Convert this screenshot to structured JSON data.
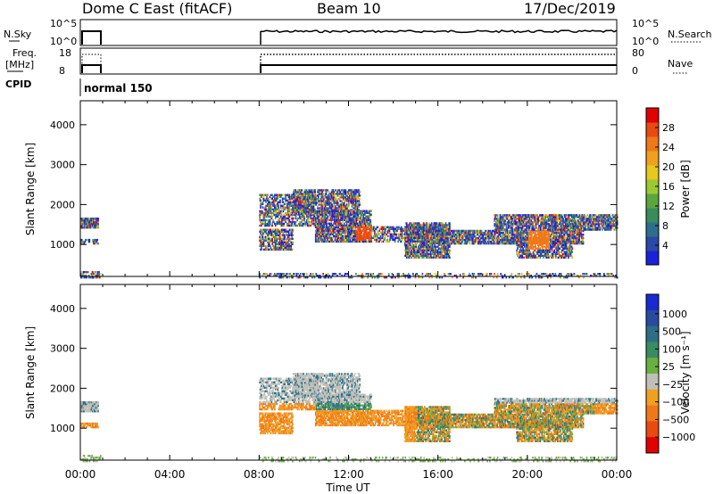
{
  "header": {
    "station": "Dome C East (fitACF)",
    "beam": "Beam 10",
    "date": "17/Dec/2019"
  },
  "panels": {
    "nsky_label": "N.Sky",
    "nsky_ticks": [
      "10^5",
      "10^0"
    ],
    "nsearch_label": "N.Search",
    "nsearch_ticks": [
      "10^5",
      "10^0"
    ],
    "freq_label_1": "Freq.",
    "freq_label_2": "[MHz]",
    "freq_ticks": [
      "18",
      "8"
    ],
    "nave_label": "Nave",
    "nave_ticks": [
      "80",
      "0"
    ],
    "cpid_label": "CPID",
    "cpid_value": "normal 150"
  },
  "colors": {
    "power_scale": [
      "#1a22dc",
      "#2a49a8",
      "#2d6e8c",
      "#3a8c5a",
      "#5aa83c",
      "#9cc832",
      "#e6c81e",
      "#f0a01e",
      "#f07818",
      "#e84a10",
      "#e00000"
    ],
    "velocity_scale": [
      "#1a2ad0",
      "#2a4aa0",
      "#2c6e86",
      "#3a8c62",
      "#6ab040",
      "#c0c0b8",
      "#f0a020",
      "#f07818",
      "#e84a10",
      "#e00000"
    ]
  },
  "chart_data": [
    {
      "type": "heatmap",
      "ylabel": "Slant Range [km]",
      "xlabel": "",
      "y_ticks": [
        "1000",
        "2000",
        "3000",
        "4000"
      ],
      "ylim": [
        200,
        4600
      ],
      "x_ticks": [
        "00:00",
        "04:00",
        "08:00",
        "12:00",
        "16:00",
        "20:00",
        "00:00"
      ],
      "colorbar_label": "Power [dB]",
      "colorbar_ticks": [
        "4",
        "8",
        "12",
        "16",
        "20",
        "24",
        "28"
      ],
      "colorbar_range": [
        0,
        32
      ]
    },
    {
      "type": "heatmap",
      "ylabel": "Slant Range [km]",
      "xlabel": "Time UT",
      "y_ticks": [
        "1000",
        "2000",
        "3000",
        "4000"
      ],
      "ylim": [
        200,
        4600
      ],
      "x_ticks": [
        "00:00",
        "04:00",
        "08:00",
        "12:00",
        "16:00",
        "20:00",
        "00:00"
      ],
      "colorbar_label": "Velocity [m s⁻¹]",
      "colorbar_ticks": [
        "1000",
        "500",
        "100",
        "25",
        "−25",
        "−100",
        "−500",
        "−1000"
      ]
    }
  ]
}
